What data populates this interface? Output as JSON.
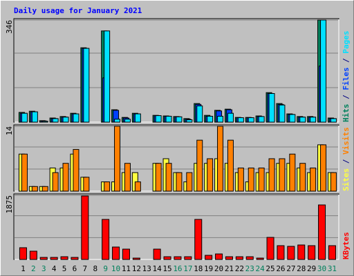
{
  "chart_data": {
    "type": "bar",
    "title": "Daily usage for January 2021",
    "categories": [
      "1",
      "2",
      "3",
      "4",
      "5",
      "6",
      "7",
      "8",
      "9",
      "10",
      "11",
      "12",
      "13",
      "14",
      "15",
      "16",
      "17",
      "18",
      "19",
      "20",
      "21",
      "22",
      "23",
      "24",
      "25",
      "26",
      "27",
      "28",
      "29",
      "30",
      "31"
    ],
    "weekend_categories": [
      1,
      2,
      8,
      9,
      15,
      16,
      22,
      23,
      29,
      30
    ],
    "weekend_color": "#00805c",
    "label_color": "#000000",
    "legend_separator": "/",
    "panels": [
      {
        "ylim": [
          0,
          346
        ],
        "yticks": [
          346
        ],
        "grid": true,
        "series": [
          {
            "name": "Hits",
            "color": "#00805c",
            "values": [
              33,
              37,
              5,
              14,
              19,
              30,
              252,
              0,
              309,
              42,
              16,
              30,
              0,
              23,
              21,
              19,
              12,
              63,
              23,
              40,
              44,
              16,
              16,
              21,
              100,
              63,
              28,
              19,
              19,
              346,
              14
            ]
          },
          {
            "name": "Files",
            "color": "#0040ff",
            "values": [
              30,
              35,
              4,
              12,
              17,
              28,
              250,
              0,
              150,
              40,
              14,
              28,
              0,
              22,
              20,
              18,
              10,
              60,
              20,
              38,
              42,
              15,
              15,
              19,
              97,
              60,
              26,
              17,
              17,
              190,
              12
            ]
          },
          {
            "name": "Pages",
            "color": "#00e0ff",
            "values": [
              30,
              35,
              3,
              12,
              17,
              28,
              250,
              0,
              309,
              10,
              10,
              28,
              0,
              22,
              20,
              18,
              8,
              55,
              20,
              20,
              30,
              15,
              15,
              19,
              97,
              58,
              26,
              17,
              17,
              346,
              12
            ]
          }
        ]
      },
      {
        "ylim": [
          0,
          14
        ],
        "yticks": [
          14
        ],
        "grid": true,
        "series": [
          {
            "name": "Sites",
            "color": "#ffff40",
            "values": [
              8,
              1,
              1,
              5,
              5,
              8,
              3,
              0,
              2,
              2,
              4,
              4,
              0,
              6,
              7,
              4,
              2,
              6,
              6,
              7,
              6,
              4,
              2,
              4,
              4,
              6,
              6,
              5,
              4,
              10,
              4
            ]
          },
          {
            "name": "Visits",
            "color": "#ff8000",
            "values": [
              8,
              1,
              1,
              4,
              6,
              9,
              3,
              0,
              2,
              14,
              6,
              2,
              0,
              6,
              6,
              4,
              4,
              11,
              7,
              14,
              11,
              5,
              5,
              5,
              7,
              7,
              8,
              6,
              5,
              10,
              4
            ]
          }
        ]
      },
      {
        "ylim": [
          0,
          1875
        ],
        "yticks": [
          1875
        ],
        "grid": true,
        "series": [
          {
            "name": "KBytes",
            "color": "#ff0000",
            "values": [
              343,
              242,
              60,
              60,
              80,
              60,
              1855,
              0,
              1170,
              363,
              302,
              40,
              0,
              302,
              80,
              80,
              80,
              1170,
              121,
              161,
              80,
              80,
              80,
              40,
              645,
              403,
              383,
              423,
              403,
              1593,
              403
            ]
          }
        ]
      }
    ]
  }
}
